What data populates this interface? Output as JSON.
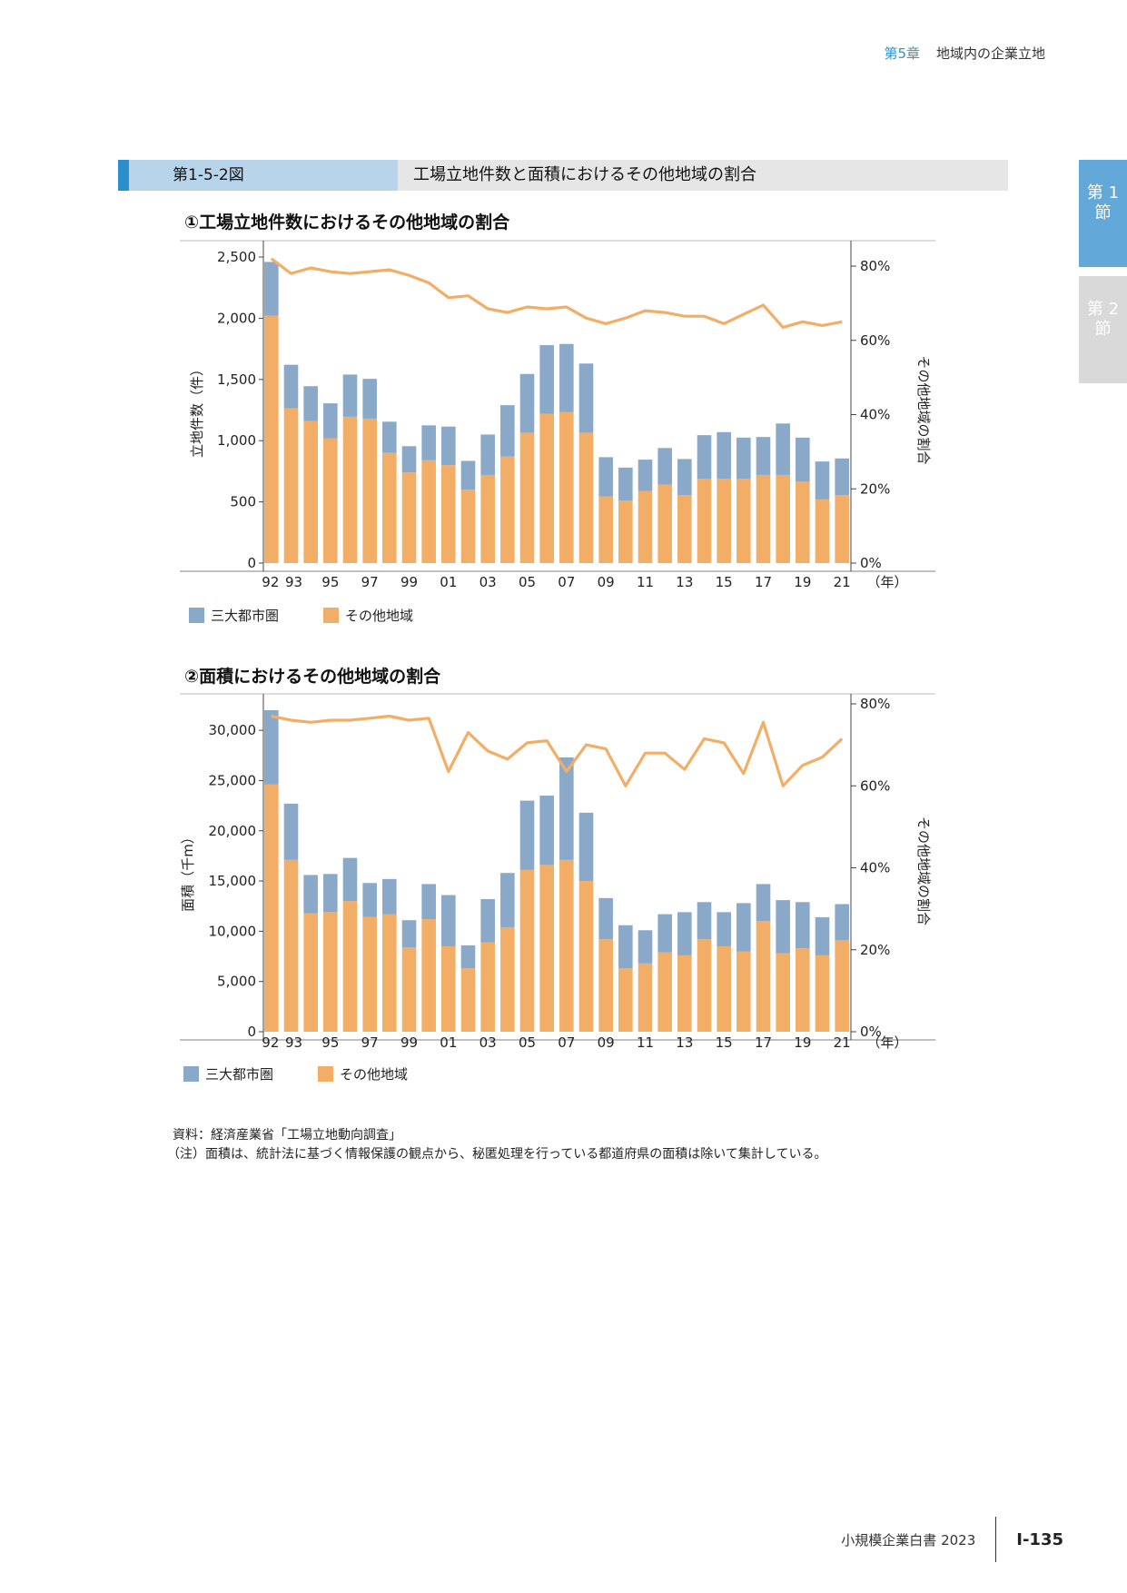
{
  "header": {
    "chapter_num": "第5章",
    "chapter_title": "地域内の企業立地"
  },
  "side_tabs": [
    {
      "label": "第 1 節"
    },
    {
      "label": "第 2 節"
    }
  ],
  "figure": {
    "label": "第1-5-2図",
    "title": "工場立地件数と面積におけるその他地域の割合"
  },
  "colors": {
    "sandai": "#8aa9c9",
    "other": "#f2ae66",
    "line": "#f2ae66"
  },
  "chart_data": [
    {
      "type": "bar",
      "stacked": true,
      "title": "①工場立地件数におけるその他地域の割合",
      "ylabel": "立地件数（件）",
      "y2label": "その他地域の割合",
      "xunit": "（年）",
      "ylim": [
        0,
        2500
      ],
      "y2lim": [
        0,
        0.8
      ],
      "yticks": [
        0,
        500,
        1000,
        1500,
        2000,
        2500
      ],
      "ytick_labels": [
        "0",
        "500",
        "1,000",
        "1,500",
        "2,000",
        "2,500"
      ],
      "y2ticks": [
        0,
        0.2,
        0.4,
        0.6,
        0.8
      ],
      "y2tick_labels": [
        "0%",
        "20%",
        "40%",
        "60%",
        "80%"
      ],
      "categories": [
        "92",
        "93",
        "94",
        "95",
        "96",
        "97",
        "98",
        "99",
        "00",
        "01",
        "02",
        "03",
        "04",
        "05",
        "06",
        "07",
        "08",
        "09",
        "10",
        "11",
        "12",
        "13",
        "14",
        "15",
        "16",
        "17",
        "18",
        "19",
        "20",
        "21"
      ],
      "xtick_labels": [
        "92",
        "93",
        "",
        "95",
        "",
        "97",
        "",
        "99",
        "",
        "01",
        "",
        "03",
        "",
        "05",
        "",
        "07",
        "",
        "09",
        "",
        "11",
        "",
        "13",
        "",
        "15",
        "",
        "17",
        "",
        "19",
        "",
        "21"
      ],
      "series": [
        {
          "name": "その他地域",
          "values": [
            2020,
            1265,
            1160,
            1020,
            1195,
            1180,
            900,
            740,
            840,
            800,
            600,
            720,
            870,
            1065,
            1220,
            1235,
            1065,
            545,
            510,
            590,
            640,
            555,
            690,
            690,
            690,
            720,
            720,
            665,
            520,
            555
          ]
        },
        {
          "name": "三大都市圏",
          "values": [
            440,
            355,
            285,
            285,
            345,
            325,
            255,
            215,
            285,
            315,
            235,
            330,
            420,
            480,
            560,
            555,
            565,
            320,
            270,
            255,
            300,
            295,
            355,
            380,
            335,
            310,
            420,
            360,
            310,
            300
          ]
        },
        {
          "name": "その他地域の割合",
          "axis": "y2",
          "values": [
            0.82,
            0.78,
            0.795,
            0.785,
            0.78,
            0.785,
            0.79,
            0.775,
            0.755,
            0.715,
            0.72,
            0.685,
            0.675,
            0.69,
            0.685,
            0.69,
            0.66,
            0.645,
            0.66,
            0.68,
            0.675,
            0.665,
            0.665,
            0.645,
            0.67,
            0.695,
            0.635,
            0.65,
            0.64,
            0.65
          ]
        }
      ],
      "legend": [
        {
          "label": "三大都市圏"
        },
        {
          "label": "その他地域"
        }
      ]
    },
    {
      "type": "bar",
      "stacked": true,
      "title": "②面積におけるその他地域の割合",
      "ylabel": "面積（千m）",
      "y2label": "その他地域の割合",
      "xunit": "（年）",
      "ylim": [
        0,
        32000
      ],
      "y2lim": [
        0,
        0.8
      ],
      "yticks": [
        0,
        5000,
        10000,
        15000,
        20000,
        25000,
        30000
      ],
      "ytick_labels": [
        "0",
        "5,000",
        "10,000",
        "15,000",
        "20,000",
        "25,000",
        "30,000"
      ],
      "y2ticks": [
        0,
        0.2,
        0.4,
        0.6,
        0.8
      ],
      "y2tick_labels": [
        "0%",
        "20%",
        "40%",
        "60%",
        "80%"
      ],
      "categories": [
        "92",
        "93",
        "94",
        "95",
        "96",
        "97",
        "98",
        "99",
        "00",
        "01",
        "02",
        "03",
        "04",
        "05",
        "06",
        "07",
        "08",
        "09",
        "10",
        "11",
        "12",
        "13",
        "14",
        "15",
        "16",
        "17",
        "18",
        "19",
        "20",
        "21"
      ],
      "xtick_labels": [
        "92",
        "93",
        "",
        "95",
        "",
        "97",
        "",
        "99",
        "",
        "01",
        "",
        "03",
        "",
        "05",
        "",
        "07",
        "",
        "09",
        "",
        "11",
        "",
        "13",
        "",
        "15",
        "",
        "17",
        "",
        "19",
        "",
        "21"
      ],
      "series": [
        {
          "name": "その他地域",
          "values": [
            24600,
            17100,
            11800,
            11900,
            13000,
            11400,
            11700,
            8400,
            11200,
            8500,
            6300,
            8900,
            10400,
            16100,
            16600,
            17100,
            15000,
            9200,
            6300,
            6800,
            7900,
            7600,
            9200,
            8500,
            8000,
            11000,
            7800,
            8300,
            7600,
            9100
          ]
        },
        {
          "name": "三大都市圏",
          "values": [
            7400,
            5600,
            3800,
            3800,
            4300,
            3400,
            3500,
            2700,
            3500,
            5100,
            2300,
            4300,
            5400,
            6900,
            6900,
            10200,
            6800,
            4100,
            4300,
            3300,
            3800,
            4300,
            3700,
            3400,
            4800,
            3700,
            5300,
            4600,
            3800,
            3600
          ]
        },
        {
          "name": "その他地域の割合",
          "axis": "y2",
          "values": [
            0.77,
            0.76,
            0.755,
            0.76,
            0.76,
            0.765,
            0.77,
            0.76,
            0.765,
            0.635,
            0.73,
            0.685,
            0.665,
            0.705,
            0.71,
            0.635,
            0.7,
            0.69,
            0.6,
            0.68,
            0.68,
            0.64,
            0.715,
            0.705,
            0.63,
            0.755,
            0.6,
            0.65,
            0.67,
            0.715
          ]
        }
      ],
      "legend": [
        {
          "label": "三大都市圏"
        },
        {
          "label": "その他地域"
        }
      ]
    }
  ],
  "source": {
    "line1": "資料：経済産業省「工場立地動向調査」",
    "line2": "（注）面積は、統計法に基づく情報保護の観点から、秘匿処理を行っている都道府県の面積は除いて集計している。"
  },
  "footer": {
    "publication": "小規模企業白書 2023",
    "page": "Ⅰ-135"
  }
}
